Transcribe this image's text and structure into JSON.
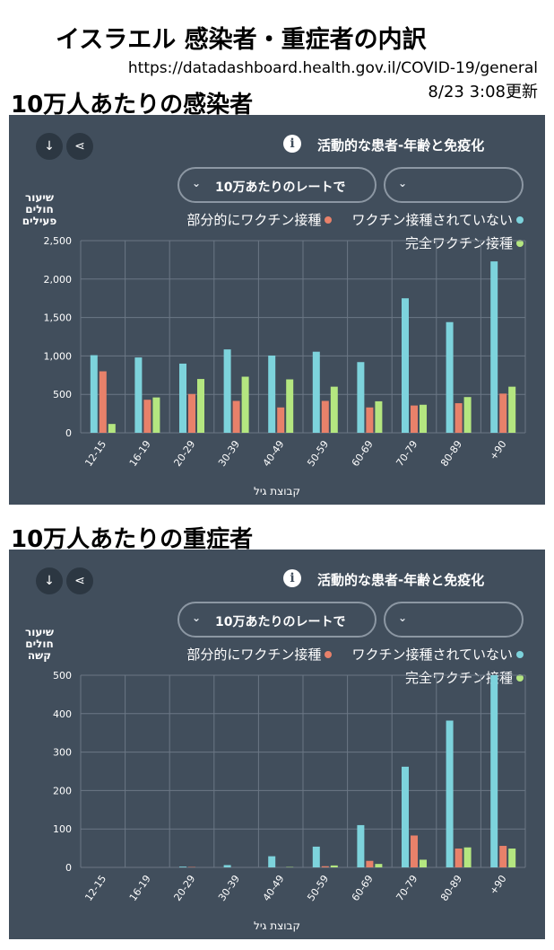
{
  "header": {
    "title": "イスラエル 感染者・重症者の内訳",
    "url": "https://datadashboard.health.gov.il/COVID-19/general",
    "updated": "8/23 3:08更新"
  },
  "colors": {
    "panel_bg": "#414e5c",
    "unvaccinated": "#7dd3dc",
    "partial": "#e8816a",
    "full": "#b4e680"
  },
  "panels": [
    {
      "section_title": "10万人あたりの感染者",
      "panel_title": "活動的な患者-年齢と免疫化",
      "dropdown_label": "10万あたりのレートで",
      "legend": {
        "partial": "部分的にワクチン接種",
        "unvaccinated": "ワクチン接種されていない",
        "full": "完全ワクチン接種"
      },
      "ylabel_lines": [
        "שיעור",
        "חולים",
        "פעילים"
      ],
      "xlabel": "קבוצת גיל"
    },
    {
      "section_title": "10万人あたりの重症者",
      "panel_title": "活動的な患者-年齢と免疫化",
      "dropdown_label": "10万あたりのレートで",
      "legend": {
        "partial": "部分的にワクチン接種",
        "unvaccinated": "ワクチン接種されていない",
        "full": "完全ワクチン接種"
      },
      "ylabel_lines": [
        "שיעור",
        "חולים",
        "קשה"
      ],
      "xlabel": "קבוצת גיל"
    }
  ],
  "chart_data": [
    {
      "type": "bar",
      "title": "10万人あたりの感染者",
      "xlabel": "קבוצת גיל",
      "ylabel": "שיעור חולים פעילים",
      "categories": [
        "12-15",
        "16-19",
        "20-29",
        "30-39",
        "40-49",
        "50-59",
        "60-69",
        "70-79",
        "80-89",
        "+90"
      ],
      "ylim": [
        0,
        2500
      ],
      "yticks": [
        0,
        500,
        1000,
        1500,
        2000,
        2500
      ],
      "ytick_labels": [
        "0",
        "500",
        "1,000",
        "1,500",
        "2,000",
        "2,500"
      ],
      "series": [
        {
          "name": "ワクチン接種されていない",
          "key": "unvaccinated",
          "values": [
            1010,
            980,
            900,
            1085,
            1005,
            1055,
            920,
            1750,
            1440,
            2230
          ]
        },
        {
          "name": "部分的にワクチン接種",
          "key": "partial",
          "values": [
            800,
            430,
            505,
            415,
            330,
            415,
            330,
            355,
            385,
            510
          ]
        },
        {
          "name": "完全ワクチン接種",
          "key": "full",
          "values": [
            115,
            460,
            700,
            730,
            695,
            600,
            410,
            365,
            465,
            600
          ]
        }
      ]
    },
    {
      "type": "bar",
      "title": "10万人あたりの重症者",
      "xlabel": "קבוצת גיל",
      "ylabel": "שיעור חולים קשה",
      "categories": [
        "12-15",
        "16-19",
        "20-29",
        "30-39",
        "40-49",
        "50-59",
        "60-69",
        "70-79",
        "80-89",
        "+90"
      ],
      "ylim": [
        0,
        500
      ],
      "yticks": [
        0,
        100,
        200,
        300,
        400,
        500
      ],
      "ytick_labels": [
        "0",
        "100",
        "200",
        "300",
        "400",
        "500"
      ],
      "series": [
        {
          "name": "ワクチン接種されていない",
          "key": "unvaccinated",
          "values": [
            0,
            0,
            2,
            6,
            29,
            54,
            110,
            262,
            382,
            500
          ]
        },
        {
          "name": "部分的にワクチン接種",
          "key": "partial",
          "values": [
            0,
            0,
            1,
            0,
            0,
            3,
            17,
            83,
            49,
            56
          ]
        },
        {
          "name": "完全ワクチン接種",
          "key": "full",
          "values": [
            0,
            0,
            0,
            0,
            1,
            5,
            9,
            20,
            52,
            49
          ]
        }
      ]
    }
  ]
}
